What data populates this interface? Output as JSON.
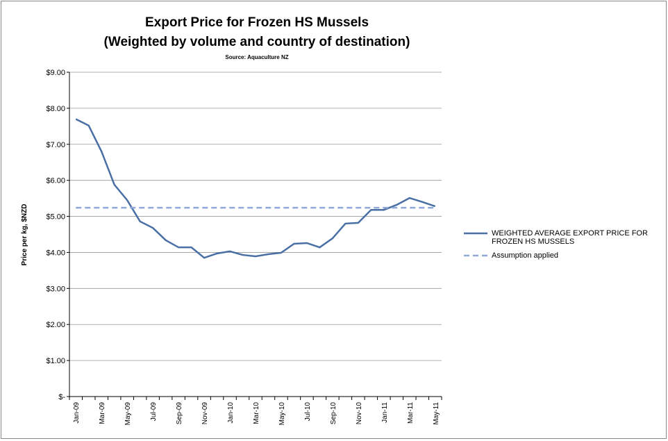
{
  "chart_data": {
    "type": "line",
    "title": "Export Price for Frozen HS Mussels",
    "subtitle": "(Weighted by volume and country of destination)",
    "source": "Source: Aquaculture NZ",
    "y_label": "Price per kg, $NZD",
    "categories": [
      "Jan-09",
      null,
      "Mar-09",
      null,
      "May-09",
      null,
      "Jul-09",
      null,
      "Sep-09",
      null,
      "Nov-09",
      null,
      "Jan-10",
      null,
      "Mar-10",
      null,
      "May-10",
      null,
      "Jul-10",
      null,
      "Sep-10",
      null,
      "Nov-10",
      null,
      "Jan-11",
      null,
      "Mar-11",
      null,
      "May-11"
    ],
    "series": [
      {
        "name": "WEIGHTED AVERAGE EXPORT PRICE FOR FROZEN HS MUSSELS",
        "color": "#4a6fa5",
        "dashed": false,
        "values": [
          7.7,
          7.52,
          6.8,
          5.88,
          5.45,
          4.86,
          4.68,
          4.34,
          4.14,
          4.14,
          3.85,
          3.97,
          4.03,
          3.93,
          3.89,
          3.95,
          3.99,
          4.24,
          4.26,
          4.14,
          4.39,
          4.8,
          4.82,
          5.18,
          5.18,
          5.32,
          5.51,
          5.4,
          5.28
        ]
      },
      {
        "name": "Assumption applied",
        "color": "#8fa8d8",
        "dashed": true,
        "values": [
          5.24,
          5.24,
          5.24,
          5.24,
          5.24,
          5.24,
          5.24,
          5.24,
          5.24,
          5.24,
          5.24,
          5.24,
          5.24,
          5.24,
          5.24,
          5.24,
          5.24,
          5.24,
          5.24,
          5.24,
          5.24,
          5.24,
          5.24,
          5.24,
          5.24,
          5.24,
          5.24,
          5.24,
          5.24
        ]
      }
    ],
    "ylim": [
      0,
      9
    ],
    "yticks": [
      {
        "value": 0,
        "label": "$-"
      },
      {
        "value": 1,
        "label": "$1.00"
      },
      {
        "value": 2,
        "label": "$2.00"
      },
      {
        "value": 3,
        "label": "$3.00"
      },
      {
        "value": 4,
        "label": "$4.00"
      },
      {
        "value": 5,
        "label": "$5.00"
      },
      {
        "value": 6,
        "label": "$6.00"
      },
      {
        "value": 7,
        "label": "$7.00"
      },
      {
        "value": 8,
        "label": "$8.00"
      },
      {
        "value": 9,
        "label": "$9.00"
      }
    ],
    "grid": true,
    "legend": "right"
  }
}
